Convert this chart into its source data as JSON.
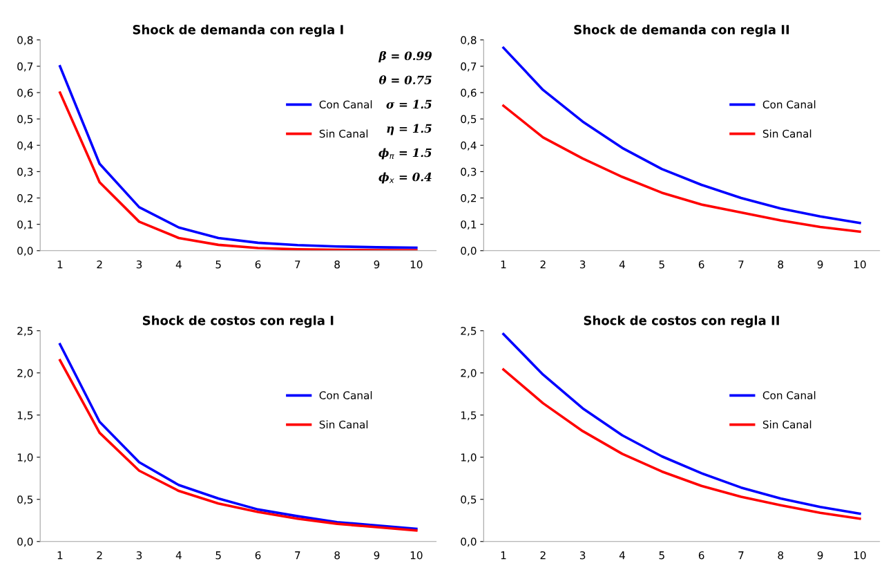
{
  "chart_data": [
    {
      "type": "line",
      "title": "Shock de demanda con regla I",
      "categories": [
        "1",
        "2",
        "3",
        "4",
        "5",
        "6",
        "7",
        "8",
        "9",
        "10"
      ],
      "series": [
        {
          "name": "Con Canal",
          "color": "#0000ff",
          "values": [
            0.7,
            0.33,
            0.165,
            0.088,
            0.048,
            0.03,
            0.021,
            0.016,
            0.013,
            0.011
          ]
        },
        {
          "name": "Sin Canal",
          "color": "#ff0000",
          "values": [
            0.6,
            0.26,
            0.11,
            0.048,
            0.022,
            0.01,
            0.005,
            0.003,
            0.002,
            0.001
          ]
        }
      ],
      "ylim": [
        0,
        0.8
      ],
      "yticks": [
        {
          "value": 0,
          "label": "0,0"
        },
        {
          "value": 0.1,
          "label": "0,1"
        },
        {
          "value": 0.2,
          "label": "0,2"
        },
        {
          "value": 0.3,
          "label": "0,3"
        },
        {
          "value": 0.4,
          "label": "0,4"
        },
        {
          "value": 0.5,
          "label": "0,5"
        },
        {
          "value": 0.6,
          "label": "0,6"
        },
        {
          "value": 0.7,
          "label": "0,7"
        },
        {
          "value": 0.8,
          "label": "0,8"
        }
      ],
      "annotations": [
        "β = 0.99",
        "θ = 0.75",
        "σ = 1.5",
        "η = 1.5",
        "ϕ$_{π}$ = 1.5",
        "ϕ$_{x}$ = 0.4"
      ],
      "legend": "right",
      "grid": false,
      "marker": "none",
      "line_style": "solid"
    },
    {
      "type": "line",
      "title": "Shock de demanda con regla II",
      "categories": [
        "1",
        "2",
        "3",
        "4",
        "5",
        "6",
        "7",
        "8",
        "9",
        "10"
      ],
      "series": [
        {
          "name": "Con Canal",
          "color": "#0000ff",
          "values": [
            0.77,
            0.61,
            0.49,
            0.39,
            0.31,
            0.25,
            0.2,
            0.16,
            0.13,
            0.105
          ]
        },
        {
          "name": "Sin Canal",
          "color": "#ff0000",
          "values": [
            0.55,
            0.43,
            0.35,
            0.28,
            0.22,
            0.175,
            0.145,
            0.115,
            0.09,
            0.072
          ]
        }
      ],
      "ylim": [
        0,
        0.8
      ],
      "yticks": [
        {
          "value": 0,
          "label": "0,0"
        },
        {
          "value": 0.1,
          "label": "0,1"
        },
        {
          "value": 0.2,
          "label": "0,2"
        },
        {
          "value": 0.3,
          "label": "0,3"
        },
        {
          "value": 0.4,
          "label": "0,4"
        },
        {
          "value": 0.5,
          "label": "0,5"
        },
        {
          "value": 0.6,
          "label": "0,6"
        },
        {
          "value": 0.7,
          "label": "0,7"
        },
        {
          "value": 0.8,
          "label": "0,8"
        }
      ],
      "legend": "right",
      "grid": false,
      "marker": "none",
      "line_style": "solid"
    },
    {
      "type": "line",
      "title": "Shock de costos con regla I",
      "categories": [
        "1",
        "2",
        "3",
        "4",
        "5",
        "6",
        "7",
        "8",
        "9",
        "10"
      ],
      "series": [
        {
          "name": "Con Canal",
          "color": "#0000ff",
          "values": [
            2.34,
            1.42,
            0.94,
            0.67,
            0.51,
            0.38,
            0.3,
            0.23,
            0.19,
            0.15
          ]
        },
        {
          "name": "Sin Canal",
          "color": "#ff0000",
          "values": [
            2.15,
            1.29,
            0.84,
            0.6,
            0.45,
            0.35,
            0.27,
            0.21,
            0.17,
            0.13
          ]
        }
      ],
      "ylim": [
        0,
        2.5
      ],
      "yticks": [
        {
          "value": 0,
          "label": "0,0"
        },
        {
          "value": 0.5,
          "label": "0,5"
        },
        {
          "value": 1.0,
          "label": "1,0"
        },
        {
          "value": 1.5,
          "label": "1,5"
        },
        {
          "value": 2.0,
          "label": "2,0"
        },
        {
          "value": 2.5,
          "label": "2,5"
        }
      ],
      "legend": "right",
      "grid": false,
      "marker": "none",
      "line_style": "solid"
    },
    {
      "type": "line",
      "title": "Shock de costos con regla II",
      "categories": [
        "1",
        "2",
        "3",
        "4",
        "5",
        "6",
        "7",
        "8",
        "9",
        "10"
      ],
      "series": [
        {
          "name": "Con Canal",
          "color": "#0000ff",
          "values": [
            2.46,
            1.98,
            1.58,
            1.26,
            1.01,
            0.81,
            0.64,
            0.51,
            0.41,
            0.33
          ]
        },
        {
          "name": "Sin Canal",
          "color": "#ff0000",
          "values": [
            2.04,
            1.64,
            1.31,
            1.04,
            0.83,
            0.66,
            0.53,
            0.43,
            0.34,
            0.27
          ]
        }
      ],
      "ylim": [
        0,
        2.5
      ],
      "yticks": [
        {
          "value": 0,
          "label": "0,0"
        },
        {
          "value": 0.5,
          "label": "0,5"
        },
        {
          "value": 1.0,
          "label": "1,0"
        },
        {
          "value": 1.5,
          "label": "1,5"
        },
        {
          "value": 2.0,
          "label": "2,0"
        },
        {
          "value": 2.5,
          "label": "2,5"
        }
      ],
      "legend": "right",
      "grid": false,
      "marker": "none",
      "line_style": "solid"
    }
  ]
}
